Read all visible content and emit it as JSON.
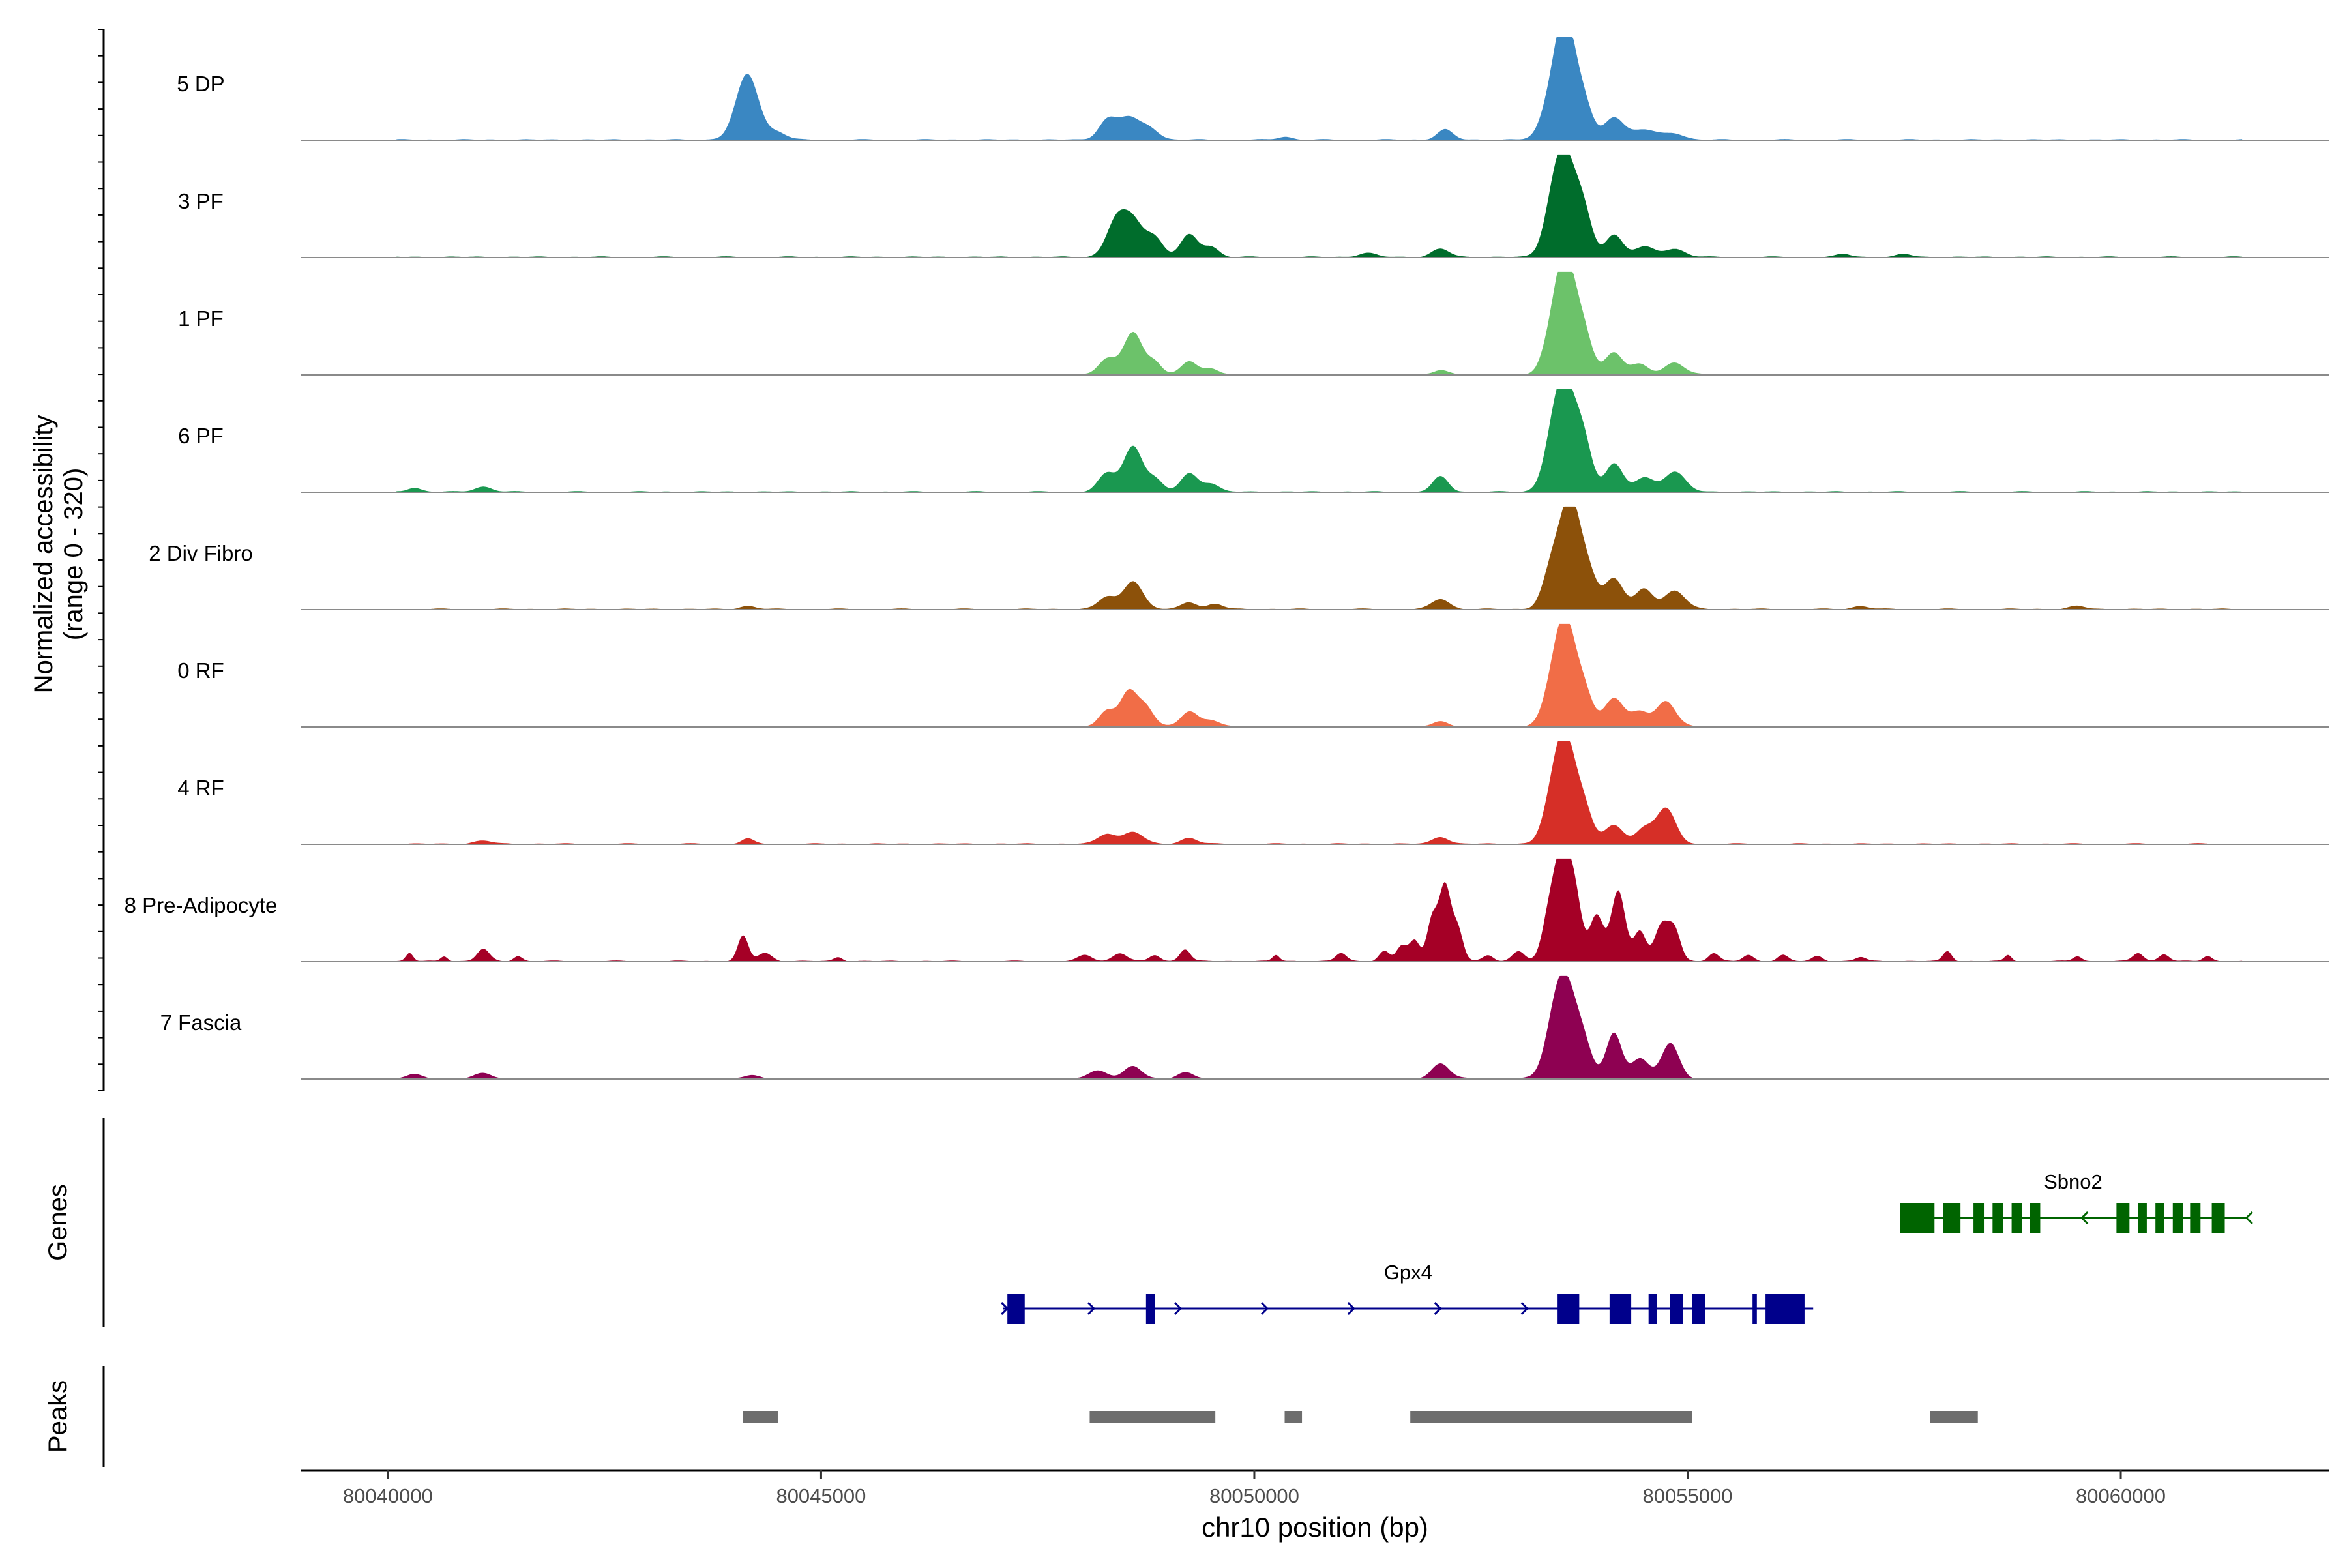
{
  "chart_data": {
    "type": "area",
    "title": "",
    "coverage": {
      "ylabel": [
        "Normalized accessibility",
        "(range 0 - 320)"
      ],
      "ylim": [
        0,
        320
      ],
      "tracks": [
        {
          "name": "5 DP",
          "color": "#3A87C2",
          "peaks": [
            [
              80044150,
              0.65,
              130
            ],
            [
              80044500,
              0.07,
              100
            ],
            [
              80048300,
              0.18,
              100
            ],
            [
              80048550,
              0.22,
              130
            ],
            [
              80048800,
              0.1,
              100
            ],
            [
              80050350,
              0.03,
              80
            ],
            [
              80052200,
              0.1,
              90
            ],
            [
              80053450,
              0.45,
              120
            ],
            [
              80053600,
              1.0,
              110
            ],
            [
              80053800,
              0.35,
              100
            ],
            [
              80054150,
              0.22,
              110
            ],
            [
              80054500,
              0.1,
              150
            ],
            [
              80054850,
              0.06,
              110
            ]
          ]
        },
        {
          "name": "3 PF",
          "color": "#006D2C",
          "peaks": [
            [
              80048400,
              0.33,
              110
            ],
            [
              80048600,
              0.35,
              120
            ],
            [
              80048850,
              0.18,
              100
            ],
            [
              80049250,
              0.22,
              100
            ],
            [
              80049500,
              0.1,
              90
            ],
            [
              80051300,
              0.04,
              100
            ],
            [
              80052150,
              0.08,
              100
            ],
            [
              80053450,
              0.45,
              110
            ],
            [
              80053600,
              0.85,
              120
            ],
            [
              80053800,
              0.4,
              100
            ],
            [
              80054150,
              0.22,
              100
            ],
            [
              80054500,
              0.1,
              120
            ],
            [
              80054850,
              0.08,
              120
            ],
            [
              80056800,
              0.03,
              80
            ],
            [
              80057500,
              0.03,
              80
            ]
          ]
        },
        {
          "name": "1 PF",
          "color": "#6CC26A",
          "peaks": [
            [
              80048300,
              0.15,
              100
            ],
            [
              80048600,
              0.42,
              110
            ],
            [
              80048850,
              0.12,
              80
            ],
            [
              80049250,
              0.13,
              90
            ],
            [
              80049500,
              0.06,
              90
            ],
            [
              80052150,
              0.04,
              80
            ],
            [
              80053450,
              0.4,
              110
            ],
            [
              80053600,
              1.0,
              110
            ],
            [
              80053800,
              0.4,
              100
            ],
            [
              80054150,
              0.22,
              100
            ],
            [
              80054450,
              0.1,
              100
            ],
            [
              80054850,
              0.12,
              110
            ]
          ]
        },
        {
          "name": "6 PF",
          "color": "#1A9850",
          "peaks": [
            [
              80040300,
              0.04,
              80
            ],
            [
              80041100,
              0.05,
              100
            ],
            [
              80048300,
              0.18,
              100
            ],
            [
              80048600,
              0.45,
              110
            ],
            [
              80048850,
              0.12,
              90
            ],
            [
              80049250,
              0.18,
              100
            ],
            [
              80049500,
              0.08,
              90
            ],
            [
              80052150,
              0.15,
              90
            ],
            [
              80053450,
              0.45,
              110
            ],
            [
              80053600,
              0.9,
              120
            ],
            [
              80053800,
              0.45,
              100
            ],
            [
              80054150,
              0.28,
              100
            ],
            [
              80054500,
              0.14,
              110
            ],
            [
              80054850,
              0.2,
              120
            ]
          ]
        },
        {
          "name": "2 Div Fibro",
          "color": "#8C510A",
          "peaks": [
            [
              80044150,
              0.03,
              90
            ],
            [
              80048300,
              0.12,
              100
            ],
            [
              80048600,
              0.28,
              110
            ],
            [
              80049250,
              0.07,
              90
            ],
            [
              80049550,
              0.05,
              90
            ],
            [
              80052150,
              0.1,
              100
            ],
            [
              80053450,
              0.45,
              110
            ],
            [
              80053650,
              1.0,
              110
            ],
            [
              80053850,
              0.35,
              100
            ],
            [
              80054150,
              0.3,
              110
            ],
            [
              80054500,
              0.2,
              100
            ],
            [
              80054850,
              0.18,
              120
            ],
            [
              80057000,
              0.03,
              90
            ],
            [
              80059500,
              0.03,
              90
            ]
          ]
        },
        {
          "name": "0 RF",
          "color": "#F16D47",
          "peaks": [
            [
              80048300,
              0.15,
              90
            ],
            [
              80048550,
              0.35,
              100
            ],
            [
              80048750,
              0.18,
              90
            ],
            [
              80049250,
              0.15,
              100
            ],
            [
              80049500,
              0.06,
              90
            ],
            [
              80052150,
              0.05,
              90
            ],
            [
              80053450,
              0.4,
              110
            ],
            [
              80053600,
              0.9,
              110
            ],
            [
              80053800,
              0.35,
              100
            ],
            [
              80054150,
              0.28,
              110
            ],
            [
              80054450,
              0.15,
              100
            ],
            [
              80054750,
              0.25,
              110
            ]
          ]
        },
        {
          "name": "4 RF",
          "color": "#D62F27",
          "peaks": [
            [
              80041100,
              0.03,
              100
            ],
            [
              80044150,
              0.05,
              70
            ],
            [
              80048300,
              0.1,
              100
            ],
            [
              80048600,
              0.12,
              110
            ],
            [
              80049250,
              0.06,
              90
            ],
            [
              80052150,
              0.07,
              90
            ],
            [
              80053450,
              0.45,
              110
            ],
            [
              80053600,
              0.9,
              110
            ],
            [
              80053800,
              0.35,
              100
            ],
            [
              80054150,
              0.18,
              110
            ],
            [
              80054500,
              0.15,
              100
            ],
            [
              80054750,
              0.35,
              110
            ]
          ]
        },
        {
          "name": "8 Pre-Adipocyte",
          "color": "#A50026",
          "peaks": [
            [
              80040250,
              0.08,
              40
            ],
            [
              80040650,
              0.05,
              40
            ],
            [
              80041100,
              0.12,
              70
            ],
            [
              80041500,
              0.05,
              50
            ],
            [
              80044100,
              0.25,
              60
            ],
            [
              80044350,
              0.08,
              80
            ],
            [
              80045200,
              0.04,
              50
            ],
            [
              80048050,
              0.06,
              80
            ],
            [
              80048450,
              0.08,
              80
            ],
            [
              80048850,
              0.06,
              60
            ],
            [
              80049200,
              0.12,
              60
            ],
            [
              80050250,
              0.06,
              40
            ],
            [
              80051000,
              0.08,
              60
            ],
            [
              80051500,
              0.1,
              60
            ],
            [
              80051700,
              0.15,
              60
            ],
            [
              80051850,
              0.2,
              60
            ],
            [
              80052050,
              0.4,
              60
            ],
            [
              80052200,
              0.75,
              70
            ],
            [
              80052350,
              0.3,
              60
            ],
            [
              80052700,
              0.06,
              60
            ],
            [
              80053050,
              0.1,
              70
            ],
            [
              80053400,
              0.4,
              80
            ],
            [
              80053550,
              1.0,
              90
            ],
            [
              80053700,
              0.6,
              80
            ],
            [
              80053950,
              0.45,
              80
            ],
            [
              80054200,
              0.7,
              80
            ],
            [
              80054450,
              0.3,
              70
            ],
            [
              80054700,
              0.35,
              80
            ],
            [
              80054850,
              0.3,
              70
            ],
            [
              80055300,
              0.08,
              60
            ],
            [
              80055700,
              0.06,
              60
            ],
            [
              80056100,
              0.06,
              60
            ],
            [
              80056500,
              0.05,
              60
            ],
            [
              80057000,
              0.04,
              60
            ],
            [
              80058000,
              0.1,
              50
            ],
            [
              80058700,
              0.06,
              40
            ],
            [
              80059500,
              0.05,
              50
            ],
            [
              80060200,
              0.08,
              60
            ],
            [
              80060500,
              0.07,
              60
            ],
            [
              80061000,
              0.05,
              50
            ]
          ]
        },
        {
          "name": "7 Fascia",
          "color": "#8E0152",
          "peaks": [
            [
              80040300,
              0.04,
              90
            ],
            [
              80041100,
              0.05,
              100
            ],
            [
              80044200,
              0.03,
              90
            ],
            [
              80048200,
              0.08,
              110
            ],
            [
              80048600,
              0.12,
              100
            ],
            [
              80049200,
              0.06,
              90
            ],
            [
              80052150,
              0.15,
              100
            ],
            [
              80053450,
              0.4,
              110
            ],
            [
              80053600,
              0.85,
              120
            ],
            [
              80053800,
              0.3,
              100
            ],
            [
              80054150,
              0.45,
              90
            ],
            [
              80054450,
              0.2,
              100
            ],
            [
              80054800,
              0.35,
              100
            ]
          ]
        }
      ]
    },
    "genes": {
      "label": "Genes",
      "items": [
        {
          "name": "Gpx4",
          "color": "#00008B",
          "strand": "+",
          "start": 80047100,
          "end": 80056450,
          "exons": [
            [
              80047150,
              80047350
            ],
            [
              80048750,
              80048850
            ],
            [
              80053500,
              80053750
            ],
            [
              80054100,
              80054350
            ],
            [
              80054550,
              80054650
            ],
            [
              80054800,
              80054950
            ],
            [
              80055050,
              80055200
            ],
            [
              80055750,
              80055800
            ],
            [
              80055900,
              80056350
            ]
          ],
          "arrows": [
            80047150,
            80048150,
            80049150,
            80050150,
            80051150,
            80052150,
            80053150,
            80055200
          ]
        },
        {
          "name": "Sbno2",
          "color": "#006400",
          "strand": "-",
          "start": 80057450,
          "end": 80061450,
          "exons": [
            [
              80057450,
              80057850
            ],
            [
              80057950,
              80058150
            ],
            [
              80058300,
              80058420
            ],
            [
              80058520,
              80058640
            ],
            [
              80058740,
              80058860
            ],
            [
              80058950,
              80059070
            ],
            [
              80059950,
              80060100
            ],
            [
              80060200,
              80060300
            ],
            [
              80060400,
              80060500
            ],
            [
              80060600,
              80060720
            ],
            [
              80060800,
              80060920
            ],
            [
              80061050,
              80061200
            ]
          ],
          "arrows": [
            80059550,
            80061450
          ]
        }
      ]
    },
    "peaks": {
      "label": "Peaks",
      "color": "#6D6D6D",
      "regions": [
        [
          80044100,
          80044500
        ],
        [
          80048100,
          80049550
        ],
        [
          80050350,
          80050550
        ],
        [
          80051800,
          80055050
        ],
        [
          80057800,
          80058350
        ]
      ]
    },
    "xaxis": {
      "xlabel": "chr10 position (bp)",
      "xlim": [
        80039000,
        80062400
      ],
      "ticks": [
        80040000,
        80045000,
        80050000,
        80055000,
        80060000
      ],
      "tick_labels": [
        "80040000",
        "80045000",
        "80050000",
        "80055000",
        "80060000"
      ]
    }
  }
}
